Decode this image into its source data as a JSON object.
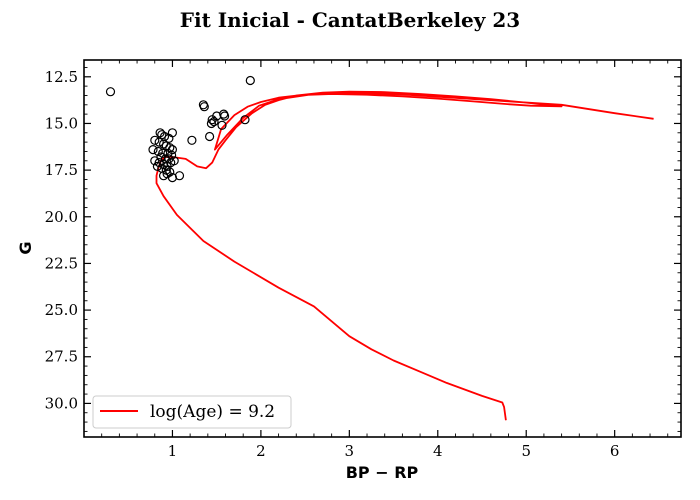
{
  "chart_data": {
    "type": "scatter",
    "title": "Fit Inicial - CantatBerkeley 23",
    "xlabel": "BP − RP",
    "ylabel": "G",
    "xlim": [
      0.0,
      6.75
    ],
    "ylim": [
      31.8,
      11.6
    ],
    "y_inverted": true,
    "xticks": [
      1,
      2,
      3,
      4,
      5,
      6
    ],
    "yticks": [
      12.5,
      15.0,
      17.5,
      20.0,
      22.5,
      25.0,
      27.5,
      30.0
    ],
    "xtick_labels": [
      "1",
      "2",
      "3",
      "4",
      "5",
      "6"
    ],
    "ytick_labels": [
      "12.5",
      "15.0",
      "17.5",
      "20.0",
      "22.5",
      "25.0",
      "27.5",
      "30.0"
    ],
    "legend_position": "lower-left",
    "colors": {
      "isochrone": "#ff0000",
      "stars": "#000000"
    },
    "series": [
      {
        "name": "",
        "kind": "scatter",
        "marker": "open-circle",
        "points": [
          [
            0.3,
            13.3
          ],
          [
            1.88,
            12.7
          ],
          [
            1.35,
            14.0
          ],
          [
            1.36,
            14.1
          ],
          [
            1.58,
            14.5
          ],
          [
            1.59,
            14.6
          ],
          [
            1.5,
            14.6
          ],
          [
            1.45,
            14.8
          ],
          [
            1.47,
            14.9
          ],
          [
            1.44,
            15.0
          ],
          [
            1.56,
            15.1
          ],
          [
            1.82,
            14.8
          ],
          [
            1.42,
            15.7
          ],
          [
            1.22,
            15.9
          ],
          [
            1.0,
            15.5
          ],
          [
            0.86,
            15.5
          ],
          [
            0.88,
            15.6
          ],
          [
            0.91,
            15.7
          ],
          [
            0.96,
            15.8
          ],
          [
            0.8,
            15.9
          ],
          [
            0.85,
            16.0
          ],
          [
            0.9,
            16.1
          ],
          [
            0.93,
            16.2
          ],
          [
            0.97,
            16.3
          ],
          [
            1.0,
            16.4
          ],
          [
            0.78,
            16.4
          ],
          [
            0.84,
            16.5
          ],
          [
            0.89,
            16.6
          ],
          [
            0.95,
            16.6
          ],
          [
            0.99,
            16.7
          ],
          [
            0.87,
            16.8
          ],
          [
            0.92,
            16.9
          ],
          [
            0.96,
            16.9
          ],
          [
            0.8,
            17.0
          ],
          [
            0.85,
            17.1
          ],
          [
            0.9,
            17.2
          ],
          [
            0.94,
            17.3
          ],
          [
            0.98,
            17.1
          ],
          [
            1.02,
            17.0
          ],
          [
            0.83,
            17.3
          ],
          [
            0.88,
            17.4
          ],
          [
            0.93,
            17.5
          ],
          [
            0.97,
            17.6
          ],
          [
            0.9,
            17.8
          ],
          [
            0.94,
            17.7
          ],
          [
            1.0,
            17.9
          ],
          [
            1.08,
            17.8
          ]
        ]
      },
      {
        "name": "log(Age) = 9.2",
        "kind": "line",
        "points": [
          [
            4.77,
            30.9
          ],
          [
            4.75,
            30.2
          ],
          [
            4.73,
            29.95
          ],
          [
            4.5,
            29.6
          ],
          [
            4.1,
            28.9
          ],
          [
            3.8,
            28.3
          ],
          [
            3.5,
            27.7
          ],
          [
            3.25,
            27.1
          ],
          [
            3.0,
            26.4
          ],
          [
            2.6,
            24.8
          ],
          [
            2.2,
            23.8
          ],
          [
            1.7,
            22.4
          ],
          [
            1.35,
            21.3
          ],
          [
            1.05,
            19.9
          ],
          [
            0.9,
            18.9
          ],
          [
            0.82,
            18.2
          ],
          [
            0.82,
            17.8
          ],
          [
            0.84,
            17.4
          ],
          [
            0.87,
            17.0
          ],
          [
            0.91,
            16.8
          ],
          [
            1.0,
            16.8
          ],
          [
            1.15,
            16.9
          ],
          [
            1.28,
            17.3
          ],
          [
            1.38,
            17.4
          ],
          [
            1.45,
            17.1
          ],
          [
            1.52,
            16.4
          ],
          [
            1.6,
            15.9
          ],
          [
            1.72,
            15.2
          ],
          [
            1.9,
            14.45
          ],
          [
            2.05,
            14.0
          ],
          [
            2.2,
            13.75
          ],
          [
            2.4,
            13.5
          ],
          [
            2.7,
            13.35
          ],
          [
            3.0,
            13.3
          ],
          [
            3.4,
            13.32
          ],
          [
            3.8,
            13.42
          ],
          [
            4.2,
            13.55
          ],
          [
            4.6,
            13.7
          ],
          [
            5.0,
            13.88
          ],
          [
            5.4,
            14.08
          ],
          [
            5.05,
            14.05
          ],
          [
            4.75,
            13.95
          ],
          [
            4.4,
            13.82
          ],
          [
            4.0,
            13.67
          ],
          [
            3.6,
            13.55
          ],
          [
            3.2,
            13.46
          ],
          [
            2.8,
            13.42
          ],
          [
            2.45,
            13.48
          ],
          [
            2.2,
            13.62
          ],
          [
            2.0,
            13.85
          ],
          [
            1.85,
            14.1
          ],
          [
            1.7,
            14.55
          ],
          [
            1.55,
            15.3
          ],
          [
            1.48,
            16.4
          ],
          [
            1.62,
            15.6
          ],
          [
            1.8,
            14.7
          ],
          [
            1.98,
            14.05
          ],
          [
            2.2,
            13.7
          ],
          [
            2.6,
            13.42
          ],
          [
            3.0,
            13.35
          ],
          [
            3.6,
            13.45
          ],
          [
            4.2,
            13.63
          ],
          [
            4.8,
            13.82
          ],
          [
            5.4,
            14.0
          ],
          [
            6.0,
            14.45
          ],
          [
            6.44,
            14.75
          ]
        ]
      }
    ]
  }
}
